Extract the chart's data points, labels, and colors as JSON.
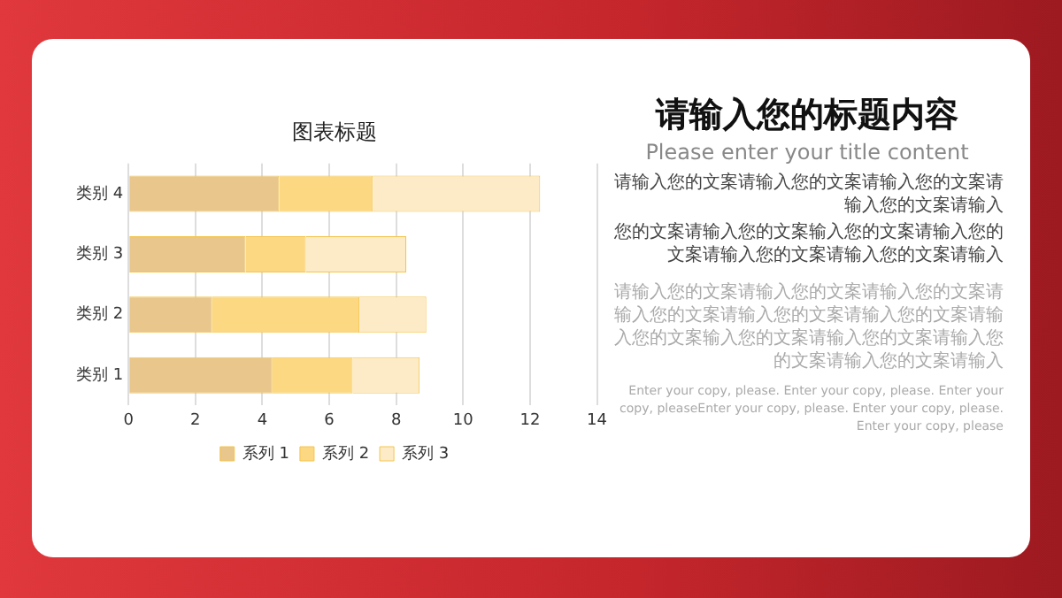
{
  "chart_data": {
    "type": "bar",
    "orientation": "horizontal",
    "stacked": true,
    "title": "图表标题",
    "categories": [
      "类别 4",
      "类别 3",
      "类别 2",
      "类别 1"
    ],
    "series": [
      {
        "name": "系列 1",
        "color": "#e8c68c",
        "values": [
          4.5,
          3.5,
          2.5,
          4.3
        ]
      },
      {
        "name": "系列 2",
        "color": "#fdd882",
        "values": [
          2.8,
          1.8,
          4.4,
          2.4
        ]
      },
      {
        "name": "系列 3",
        "color": "#fdebc8",
        "values": [
          5,
          3,
          2,
          2
        ]
      }
    ],
    "xlim": [
      0,
      14
    ],
    "xticks": [
      0,
      2,
      4,
      6,
      8,
      10,
      12,
      14
    ],
    "grid": "x",
    "legend": "bottom",
    "annotations": [
      "请输入您的标题内容",
      "Please enter your title content",
      "请输入您的文案请输入您的文案请输入您的文案请输入您的文案请输入",
      "您的文案请输入您的文案输入您的文案请输入您的文案请输入您的文案请输入您的文案请输入",
      "请输入您的文案请输入您的文案请输入您的文案请输入您的文案请输入您的文案请输入您的文案请输入您的文案输入您的文案请输入您的文案请输入您的文案请输入您的文案请输入",
      "Enter your copy, please. Enter your copy, please. Enter your copy, pleaseEnter your copy, please. Enter your copy, please. Enter your copy, please"
    ]
  }
}
